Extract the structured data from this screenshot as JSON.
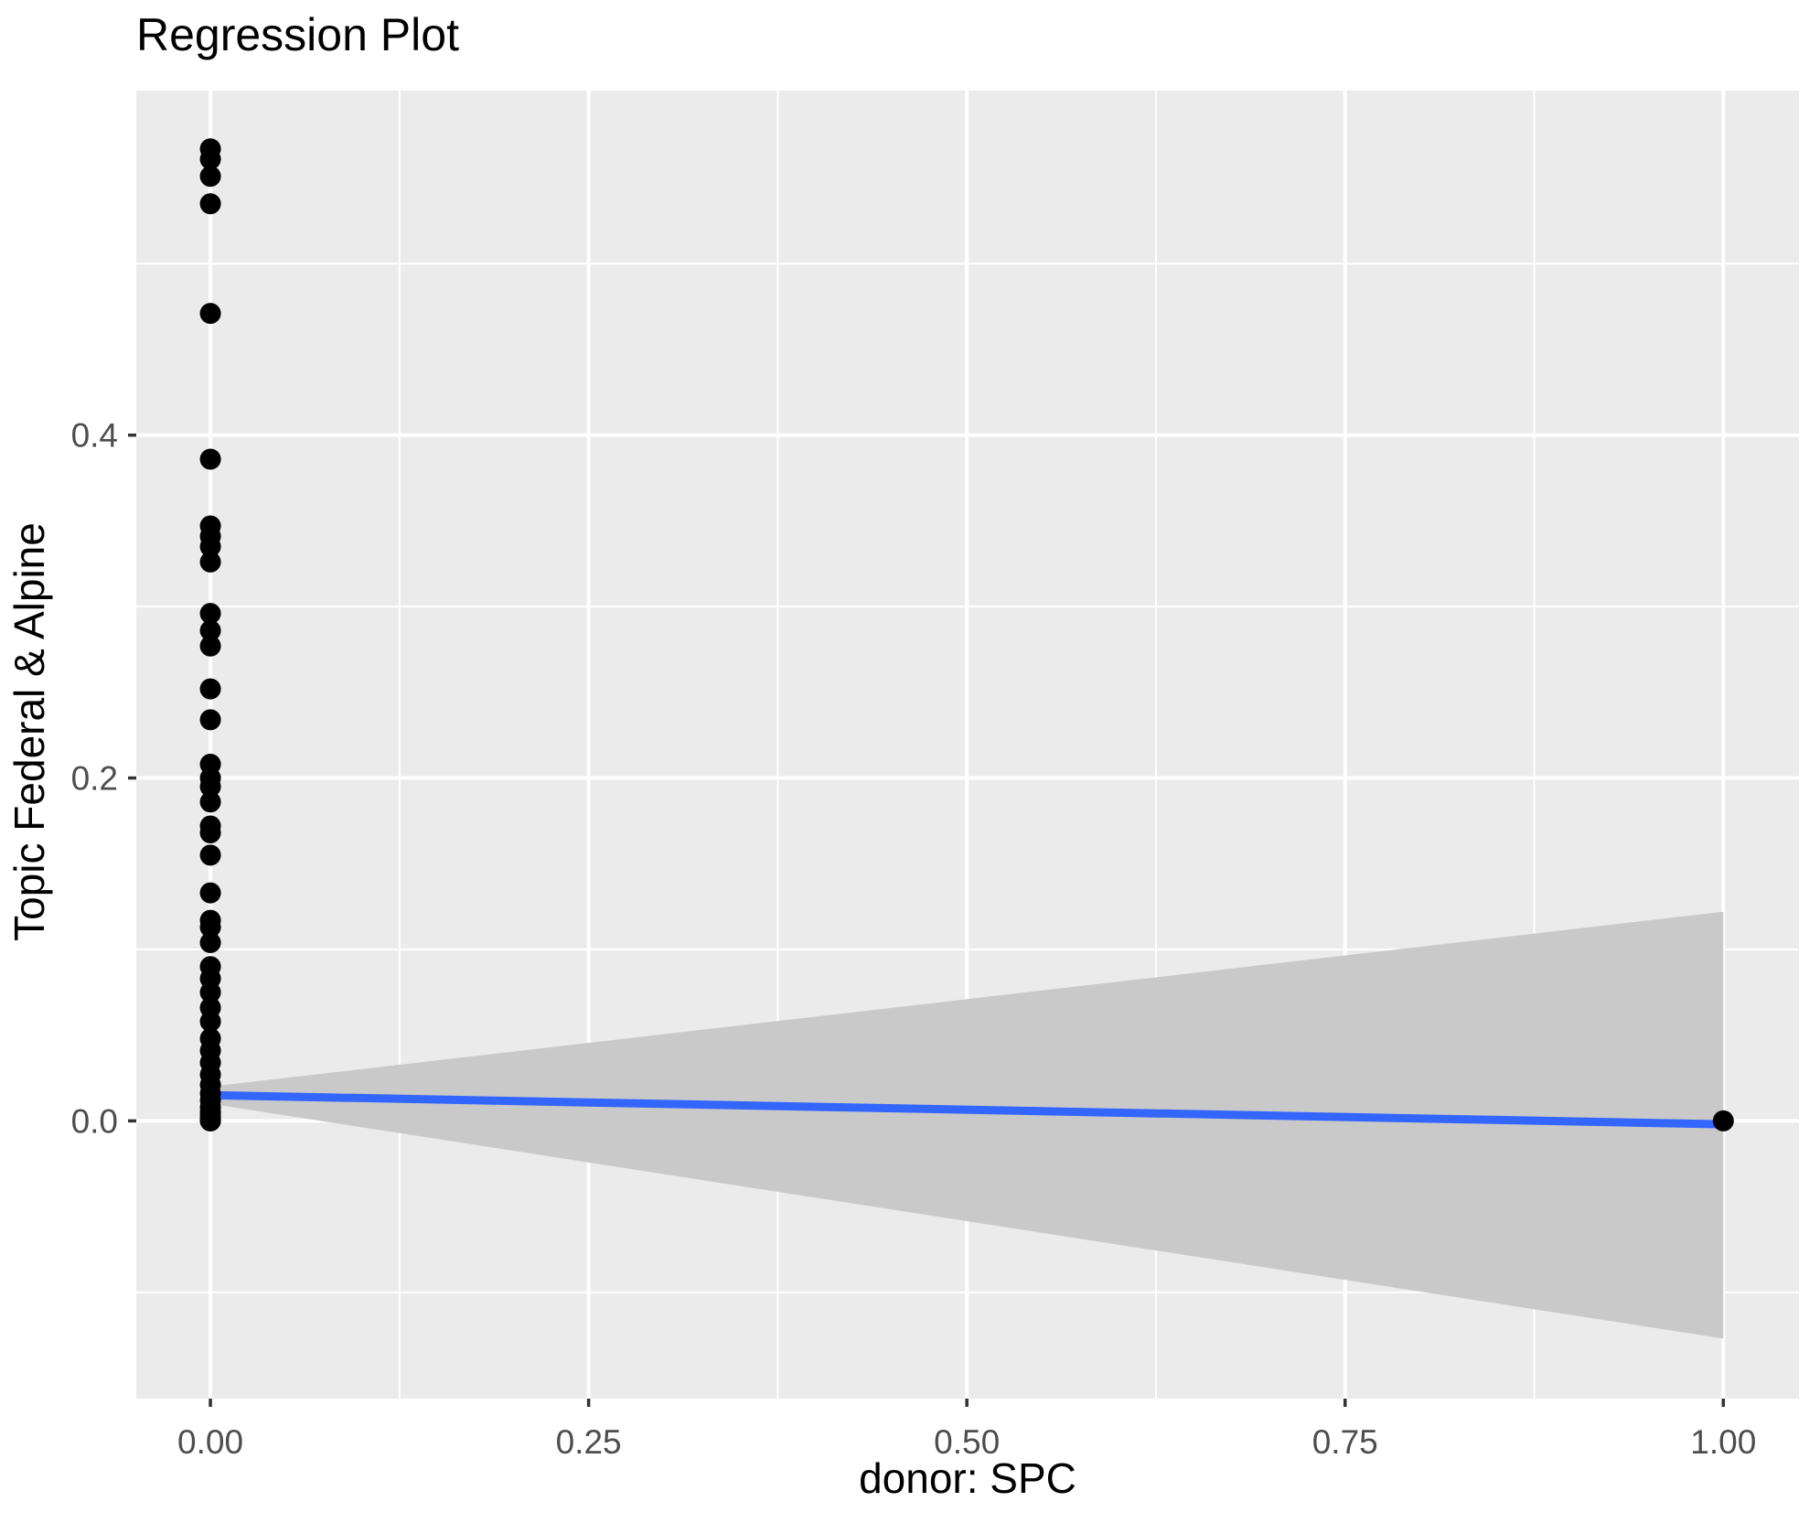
{
  "chart_data": {
    "type": "scatter",
    "title": "Regression Plot",
    "xlabel": "donor: SPC",
    "ylabel": "Topic Federal & Alpine",
    "legend": "none",
    "grid": "on",
    "xlim": [
      -0.049,
      1.05
    ],
    "ylim": [
      -0.162,
      0.601
    ],
    "x_ticks": [
      {
        "value": 0.0,
        "label": "0.00"
      },
      {
        "value": 0.25,
        "label": "0.25"
      },
      {
        "value": 0.5,
        "label": "0.50"
      },
      {
        "value": 0.75,
        "label": "0.75"
      },
      {
        "value": 1.0,
        "label": "1.00"
      }
    ],
    "x_minor_ticks": [
      0.125,
      0.375,
      0.625,
      0.875
    ],
    "y_ticks": [
      {
        "value": 0.0,
        "label": "0.0"
      },
      {
        "value": 0.2,
        "label": "0.2"
      },
      {
        "value": 0.4,
        "label": "0.4"
      }
    ],
    "y_minor_ticks": [
      -0.1,
      0.1,
      0.3,
      0.5
    ],
    "series": [
      {
        "name": "observations",
        "type": "points",
        "points": [
          [
            0,
            0.567
          ],
          [
            0,
            0.561
          ],
          [
            0,
            0.551
          ],
          [
            0,
            0.535
          ],
          [
            0,
            0.471
          ],
          [
            0,
            0.386
          ],
          [
            0,
            0.347
          ],
          [
            0,
            0.341
          ],
          [
            0,
            0.335
          ],
          [
            0,
            0.326
          ],
          [
            0,
            0.296
          ],
          [
            0,
            0.286
          ],
          [
            0,
            0.277
          ],
          [
            0,
            0.252
          ],
          [
            0,
            0.234
          ],
          [
            0,
            0.208
          ],
          [
            0,
            0.2
          ],
          [
            0,
            0.195
          ],
          [
            0,
            0.186
          ],
          [
            0,
            0.172
          ],
          [
            0,
            0.168
          ],
          [
            0,
            0.155
          ],
          [
            0,
            0.133
          ],
          [
            0,
            0.117
          ],
          [
            0,
            0.113
          ],
          [
            0,
            0.104
          ],
          [
            0,
            0.09
          ],
          [
            0,
            0.083
          ],
          [
            0,
            0.075
          ],
          [
            0,
            0.066
          ],
          [
            0,
            0.058
          ],
          [
            0,
            0.048
          ],
          [
            0,
            0.041
          ],
          [
            0,
            0.034
          ],
          [
            0,
            0.027
          ],
          [
            0,
            0.021
          ],
          [
            0,
            0.016
          ],
          [
            0,
            0.012
          ],
          [
            0,
            0.008
          ],
          [
            0,
            0.005
          ],
          [
            0,
            0.003
          ],
          [
            0,
            0.001
          ],
          [
            0,
            0.0
          ],
          [
            0,
            0.0
          ],
          [
            1,
            0.0
          ]
        ]
      },
      {
        "name": "regression-line",
        "type": "line",
        "x": [
          0,
          1
        ],
        "y": [
          0.015,
          -0.002
        ]
      },
      {
        "name": "confidence-band",
        "type": "band",
        "x": [
          0,
          1
        ],
        "upper": [
          0.02,
          0.122
        ],
        "lower": [
          0.01,
          -0.127
        ]
      }
    ],
    "colors": {
      "panel_background": "#EBEBEB",
      "gridline": "#FFFFFF",
      "confidence_band": "#C9C9C9",
      "regression_line": "#3366FF",
      "point": "#000000",
      "tick_label": "#4D4D4D",
      "tick_mark": "#333333",
      "title_text": "#000000"
    }
  }
}
